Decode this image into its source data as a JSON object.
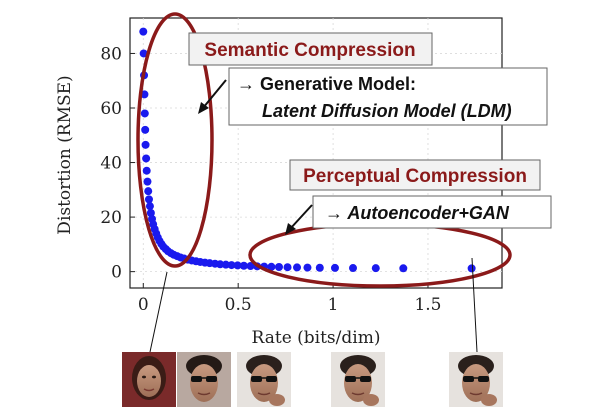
{
  "chart_data": {
    "type": "scatter",
    "title": "",
    "xlabel": "Rate (bits/dim)",
    "ylabel": "Distortion (RMSE)",
    "xlim": [
      -0.07,
      1.89
    ],
    "ylim": [
      -6,
      93
    ],
    "x_ticks": [
      {
        "value": 0,
        "label": "0"
      },
      {
        "value": 0.5,
        "label": "0.5"
      },
      {
        "value": 1,
        "label": "1"
      },
      {
        "value": 1.5,
        "label": "1.5"
      }
    ],
    "y_ticks": [
      {
        "value": 0,
        "label": "0"
      },
      {
        "value": 20,
        "label": "20"
      },
      {
        "value": 40,
        "label": "40"
      },
      {
        "value": 60,
        "label": "60"
      },
      {
        "value": 80,
        "label": "80"
      }
    ],
    "grid": true,
    "series": [
      {
        "color": "#1a1aee",
        "x": [
          0.0,
          0.002,
          0.004,
          0.006,
          0.008,
          0.01,
          0.012,
          0.015,
          0.018,
          0.022,
          0.026,
          0.03,
          0.035,
          0.04,
          0.046,
          0.052,
          0.06,
          0.068,
          0.076,
          0.085,
          0.095,
          0.105,
          0.118,
          0.13,
          0.145,
          0.16,
          0.178,
          0.196,
          0.215,
          0.235,
          0.255,
          0.278,
          0.3,
          0.325,
          0.35,
          0.378,
          0.405,
          0.435,
          0.465,
          0.497,
          0.53,
          0.565,
          0.6,
          0.637,
          0.675,
          0.715,
          0.76,
          0.81,
          0.865,
          0.93,
          1.01,
          1.105,
          1.225,
          1.37,
          1.73
        ],
        "y": [
          88.0,
          80.0,
          72.0,
          65.0,
          58.0,
          52.0,
          46.5,
          41.5,
          37.0,
          33.0,
          29.5,
          26.5,
          24.0,
          21.5,
          19.3,
          17.4,
          15.6,
          14.0,
          12.6,
          11.3,
          10.2,
          9.2,
          8.3,
          7.5,
          6.8,
          6.2,
          5.7,
          5.2,
          4.8,
          4.4,
          4.1,
          3.8,
          3.55,
          3.3,
          3.1,
          2.9,
          2.7,
          2.55,
          2.4,
          2.28,
          2.16,
          2.05,
          1.95,
          1.86,
          1.78,
          1.7,
          1.62,
          1.55,
          1.48,
          1.42,
          1.37,
          1.32,
          1.27,
          1.23,
          1.2
        ]
      }
    ],
    "annotations": [
      {
        "text": "Semantic Compression",
        "color": "#8b1a1a"
      },
      {
        "text": "→ Generative Model:",
        "text2": "Latent Diffusion Model (LDM)"
      },
      {
        "text": "Perceptual Compression",
        "color": "#8b1a1a"
      },
      {
        "text": "→ Autoencoder+GAN"
      }
    ],
    "highlight_color": "#8b1a1a",
    "annotation_fill": "#f2f2f2"
  },
  "thumbnails": [
    {
      "rate": 0.0,
      "icon": "woman-face-thumbnail"
    },
    {
      "rate": 0.0,
      "icon": "man-sunglasses-thumbnail"
    },
    {
      "rate": 0.5,
      "icon": "man-sunglasses-thumbnail"
    },
    {
      "rate": 1.0,
      "icon": "man-sunglasses-thumbnail"
    },
    {
      "rate": 1.73,
      "icon": "man-sunglasses-thumbnail"
    }
  ]
}
